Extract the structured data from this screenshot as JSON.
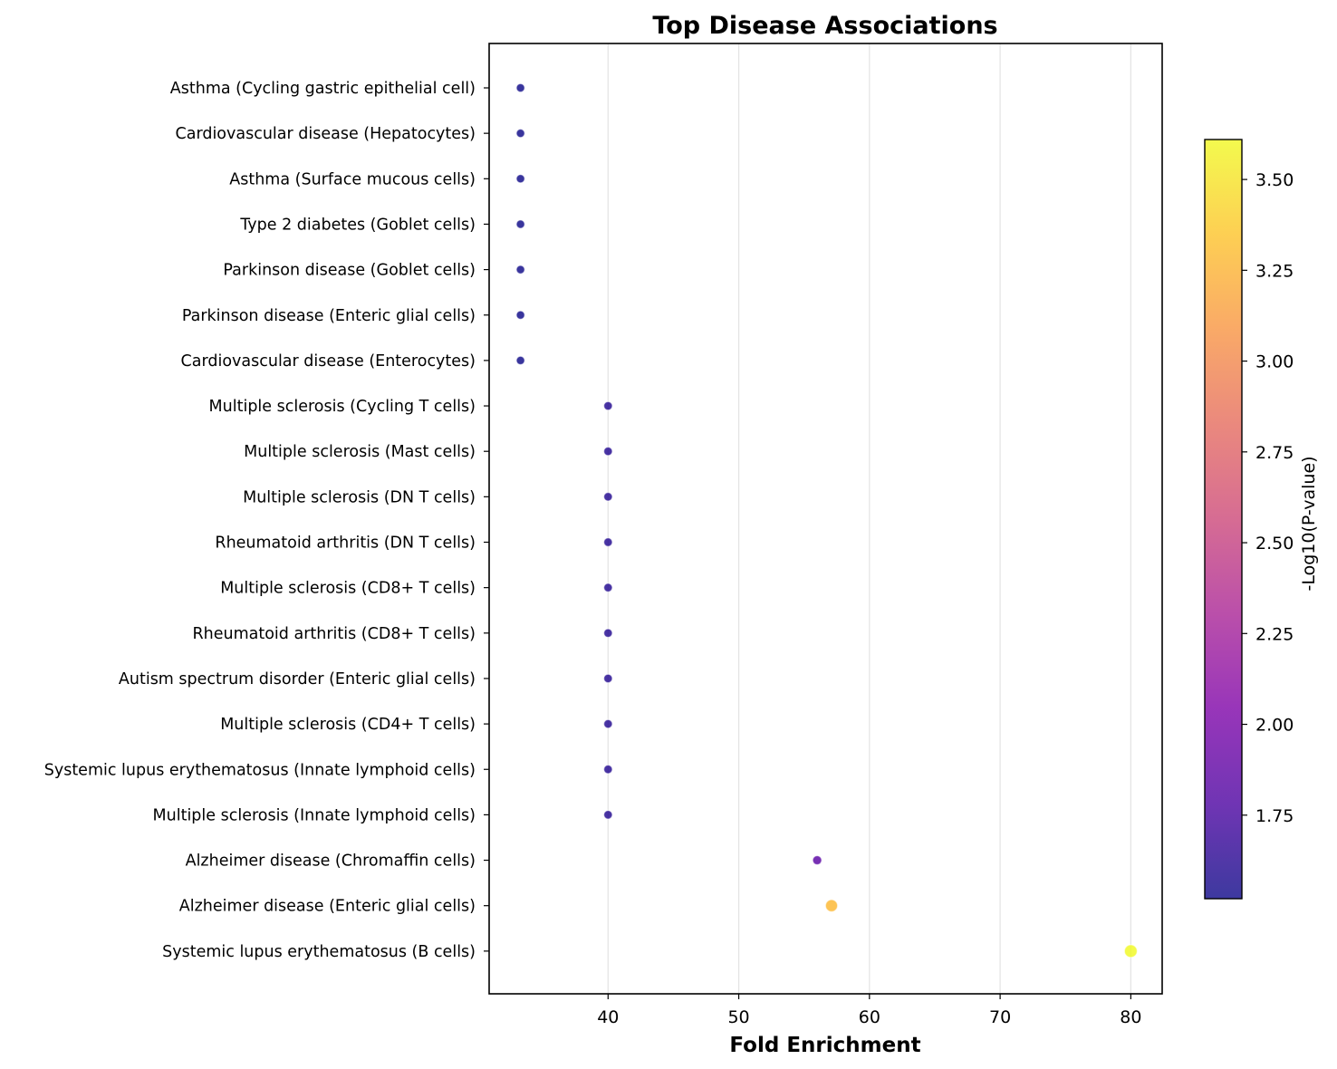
{
  "chart_data": {
    "type": "scatter",
    "title": "Top Disease Associations",
    "xlabel": "Fold Enrichment",
    "ylabel": "",
    "xlim": [
      30.9,
      82.4
    ],
    "xticks": [
      40,
      50,
      60,
      70,
      80
    ],
    "grid": "vertical",
    "colormap": "plasma",
    "colorbar": {
      "label": "-Log10(P-value)",
      "range": [
        1.52,
        3.61
      ],
      "ticks": [
        "1.75",
        "2.00",
        "2.25",
        "2.50",
        "2.75",
        "3.00",
        "3.25",
        "3.50"
      ]
    },
    "points": [
      {
        "label": "Asthma (Cycling gastric epithelial cell)",
        "x": 33.3,
        "neg_log10_p": 1.52
      },
      {
        "label": "Cardiovascular disease (Hepatocytes)",
        "x": 33.3,
        "neg_log10_p": 1.52
      },
      {
        "label": "Asthma (Surface mucous cells)",
        "x": 33.3,
        "neg_log10_p": 1.52
      },
      {
        "label": "Type 2 diabetes (Goblet cells)",
        "x": 33.3,
        "neg_log10_p": 1.52
      },
      {
        "label": "Parkinson disease (Goblet cells)",
        "x": 33.3,
        "neg_log10_p": 1.52
      },
      {
        "label": "Parkinson disease (Enteric glial cells)",
        "x": 33.3,
        "neg_log10_p": 1.52
      },
      {
        "label": "Cardiovascular disease (Enterocytes)",
        "x": 33.3,
        "neg_log10_p": 1.52
      },
      {
        "label": "Multiple sclerosis (Cycling T cells)",
        "x": 40.0,
        "neg_log10_p": 1.6
      },
      {
        "label": "Multiple sclerosis (Mast cells)",
        "x": 40.0,
        "neg_log10_p": 1.6
      },
      {
        "label": "Multiple sclerosis (DN T cells)",
        "x": 40.0,
        "neg_log10_p": 1.6
      },
      {
        "label": "Rheumatoid arthritis (DN T cells)",
        "x": 40.0,
        "neg_log10_p": 1.6
      },
      {
        "label": "Multiple sclerosis (CD8+ T cells)",
        "x": 40.0,
        "neg_log10_p": 1.6
      },
      {
        "label": "Rheumatoid arthritis (CD8+ T cells)",
        "x": 40.0,
        "neg_log10_p": 1.6
      },
      {
        "label": "Autism spectrum disorder (Enteric glial cells)",
        "x": 40.0,
        "neg_log10_p": 1.6
      },
      {
        "label": "Multiple sclerosis (CD4+ T cells)",
        "x": 40.0,
        "neg_log10_p": 1.6
      },
      {
        "label": "Systemic lupus erythematosus (Innate lymphoid cells)",
        "x": 40.0,
        "neg_log10_p": 1.6
      },
      {
        "label": "Multiple sclerosis (Innate lymphoid cells)",
        "x": 40.0,
        "neg_log10_p": 1.6
      },
      {
        "label": "Alzheimer disease (Chromaffin cells)",
        "x": 56.0,
        "neg_log10_p": 1.85
      },
      {
        "label": "Alzheimer disease (Enteric glial cells)",
        "x": 57.1,
        "neg_log10_p": 3.28
      },
      {
        "label": "Systemic lupus erythematosus (B cells)",
        "x": 80.0,
        "neg_log10_p": 3.61
      }
    ]
  }
}
